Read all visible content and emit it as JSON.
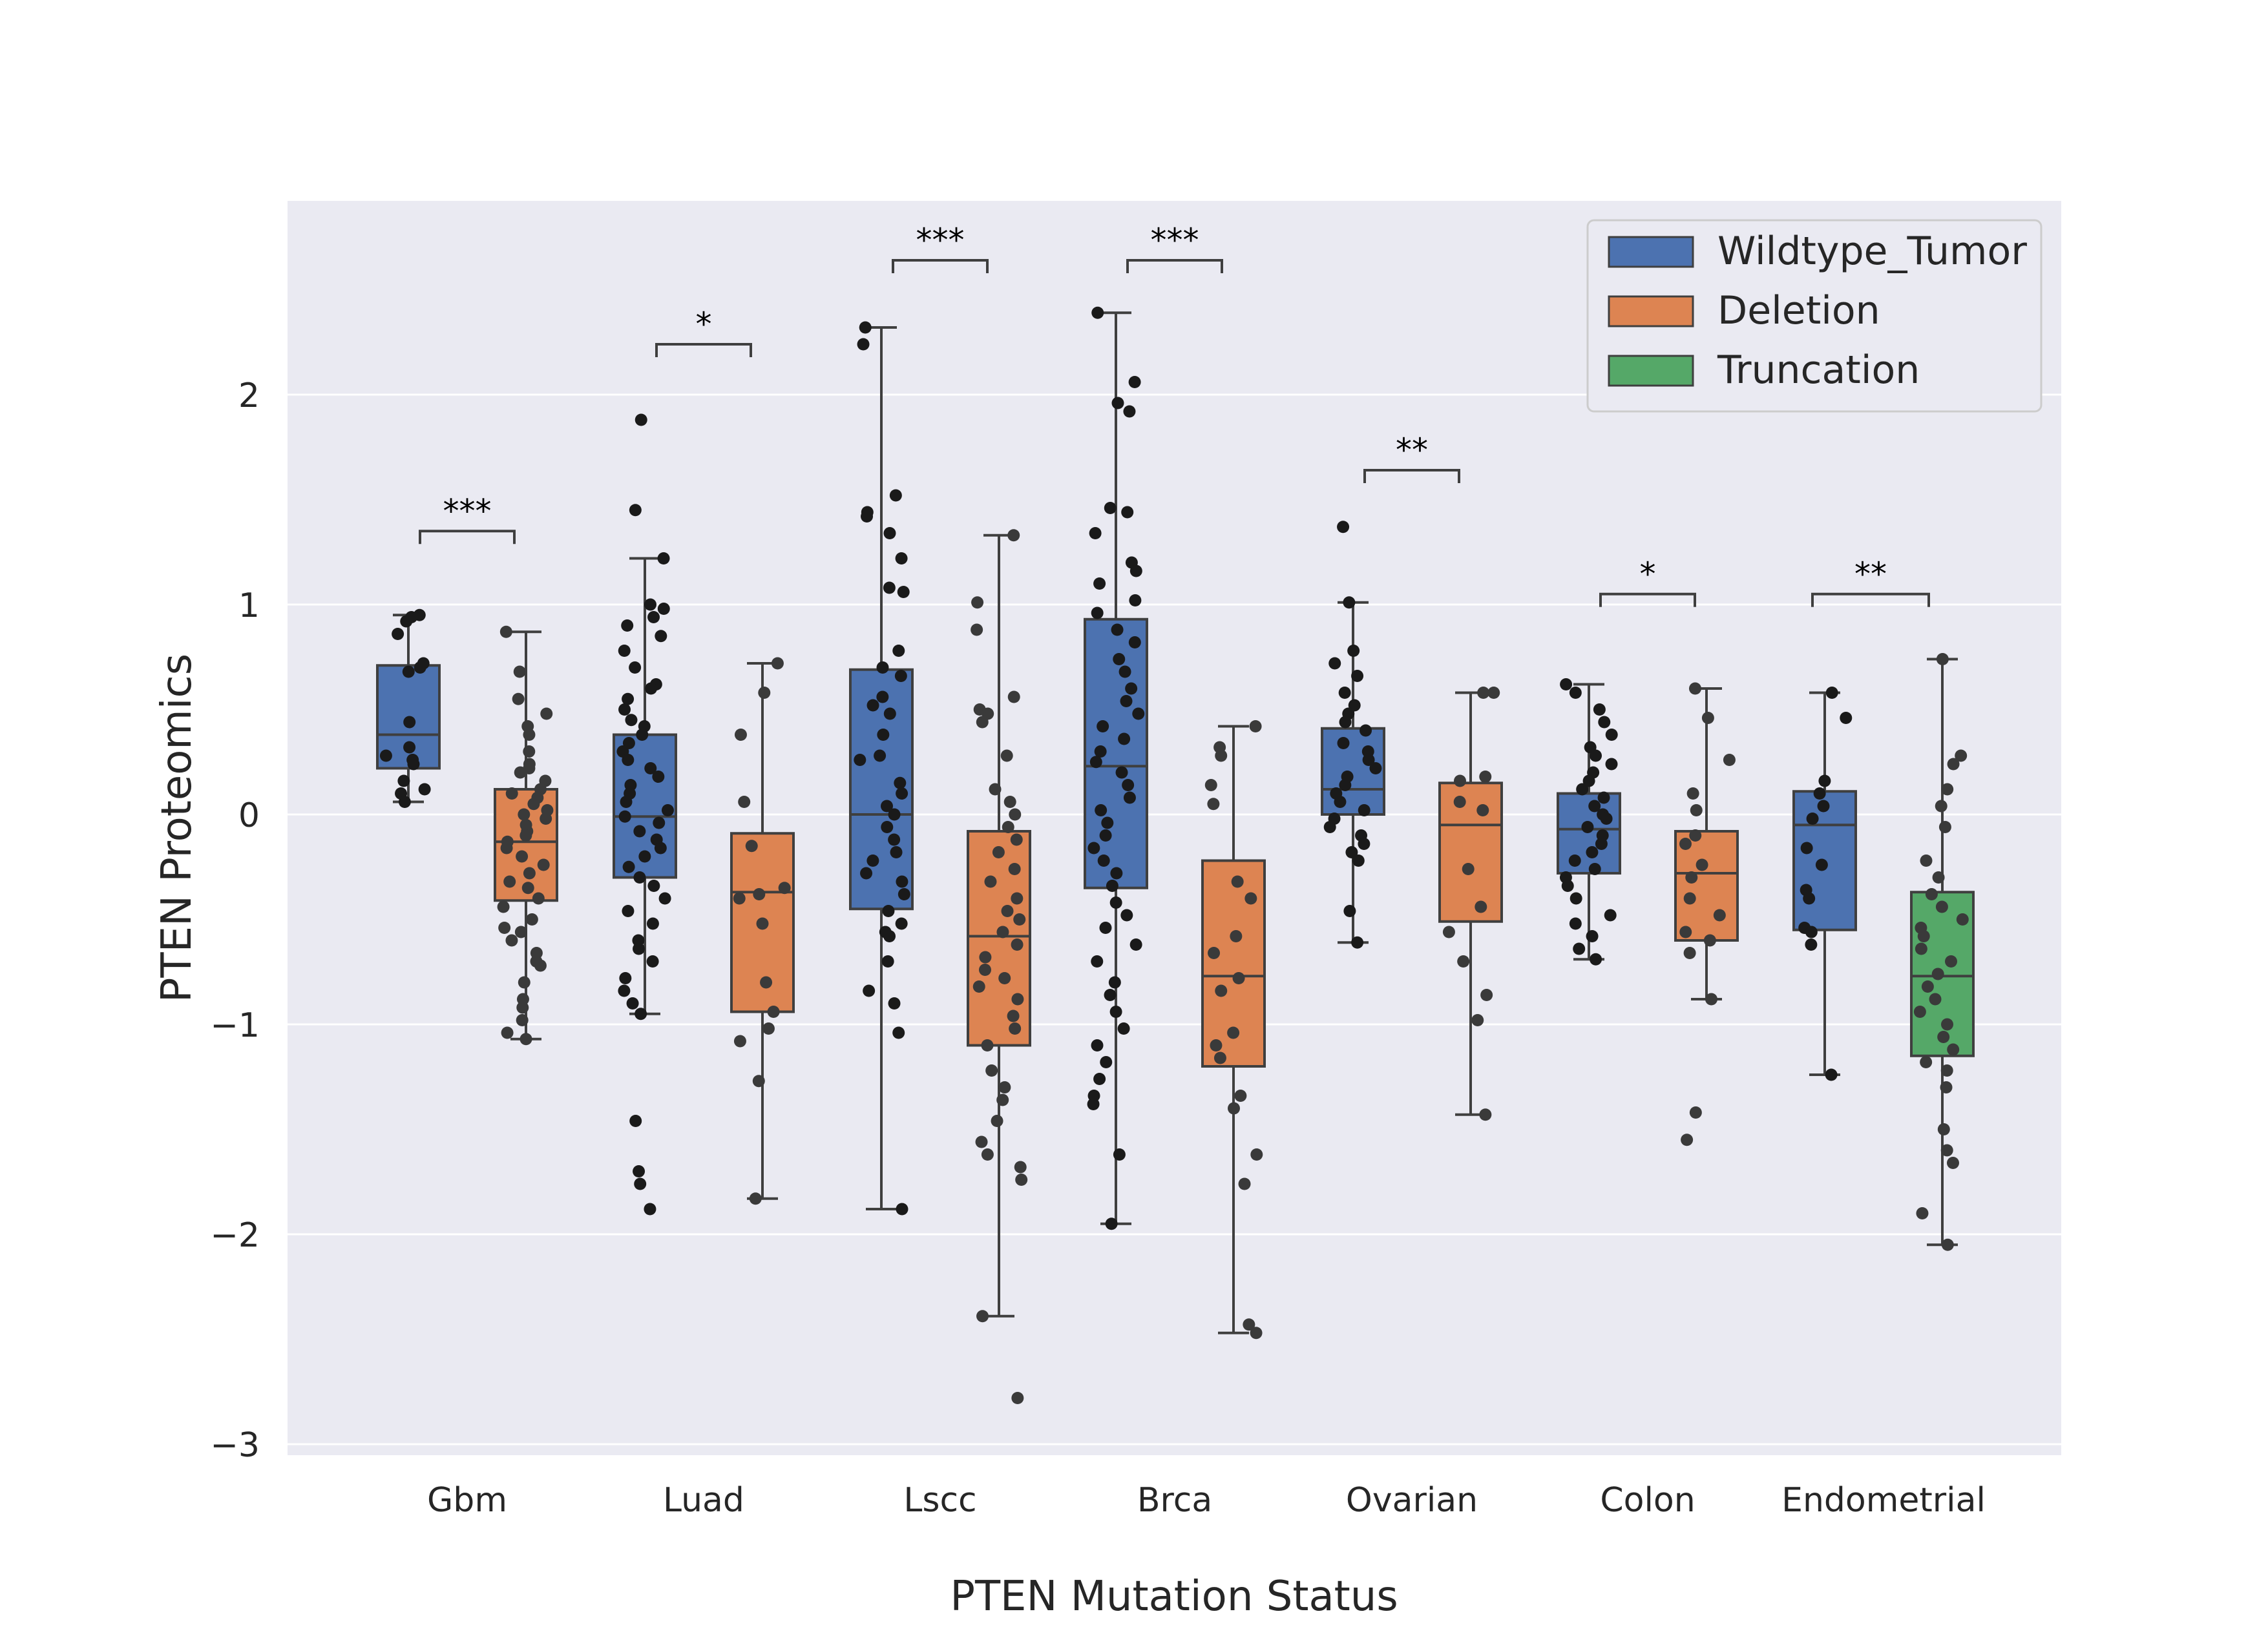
{
  "chart_data": {
    "type": "box",
    "xlabel": "PTEN Mutation Status",
    "ylabel": "PTEN Proteomics",
    "ylim": [
      -3.05,
      2.9
    ],
    "yticks": [
      -3,
      -2,
      -1,
      0,
      1,
      2
    ],
    "ytick_labels": [
      "−3",
      "−2",
      "−1",
      "0",
      "1",
      "2"
    ],
    "grid": true,
    "legend_position": "top-right",
    "categories": [
      "Gbm",
      "Luad",
      "Lscc",
      "Brca",
      "Ovarian",
      "Colon",
      "Endometrial"
    ],
    "series": [
      {
        "name": "Wildtype_Tumor",
        "color": "#4c72b0"
      },
      {
        "name": "Deletion",
        "color": "#dd8452"
      },
      {
        "name": "Truncation",
        "color": "#55a868"
      }
    ],
    "boxes": [
      {
        "category": "Gbm",
        "series": "Wildtype_Tumor",
        "slot": "left",
        "min": 0.06,
        "q1": 0.22,
        "median": 0.38,
        "q3": 0.71,
        "max": 0.95,
        "points": [
          0.95,
          0.94,
          0.92,
          0.86,
          0.72,
          0.7,
          0.68,
          0.44,
          0.32,
          0.28,
          0.26,
          0.24,
          0.16,
          0.12,
          0.1,
          0.06
        ]
      },
      {
        "category": "Gbm",
        "series": "Deletion",
        "slot": "right",
        "min": -1.07,
        "q1": -0.41,
        "median": -0.13,
        "q3": 0.12,
        "max": 0.87,
        "points": [
          0.87,
          0.68,
          0.55,
          0.48,
          0.42,
          0.38,
          0.3,
          0.24,
          0.22,
          0.2,
          0.16,
          0.12,
          0.1,
          0.08,
          0.05,
          0.02,
          0.0,
          -0.02,
          -0.05,
          -0.08,
          -0.1,
          -0.13,
          -0.16,
          -0.2,
          -0.24,
          -0.28,
          -0.32,
          -0.35,
          -0.4,
          -0.44,
          -0.5,
          -0.54,
          -0.56,
          -0.6,
          -0.66,
          -0.7,
          -0.72,
          -0.8,
          -0.88,
          -0.92,
          -0.98,
          -1.04,
          -1.07
        ]
      },
      {
        "category": "Luad",
        "series": "Wildtype_Tumor",
        "slot": "left",
        "min": -0.95,
        "q1": -0.3,
        "median": -0.01,
        "q3": 0.38,
        "max": 1.22,
        "points": [
          1.88,
          1.45,
          1.22,
          1.0,
          0.98,
          0.94,
          0.9,
          0.85,
          0.78,
          0.7,
          0.62,
          0.6,
          0.55,
          0.5,
          0.45,
          0.42,
          0.38,
          0.34,
          0.3,
          0.26,
          0.22,
          0.18,
          0.14,
          0.1,
          0.06,
          0.02,
          -0.01,
          -0.04,
          -0.08,
          -0.12,
          -0.16,
          -0.2,
          -0.25,
          -0.3,
          -0.34,
          -0.4,
          -0.46,
          -0.52,
          -0.6,
          -0.64,
          -0.7,
          -0.78,
          -0.84,
          -0.9,
          -0.95,
          -1.46,
          -1.7,
          -1.76,
          -1.88
        ]
      },
      {
        "category": "Luad",
        "series": "Deletion",
        "slot": "right",
        "min": -1.83,
        "q1": -0.94,
        "median": -0.37,
        "q3": -0.09,
        "max": 0.72,
        "points": [
          0.72,
          0.58,
          0.38,
          0.06,
          -0.15,
          -0.35,
          -0.38,
          -0.4,
          -0.52,
          -0.8,
          -0.94,
          -1.02,
          -1.08,
          -1.27,
          -1.83
        ]
      },
      {
        "category": "Lscc",
        "series": "Wildtype_Tumor",
        "slot": "left",
        "min": -1.88,
        "q1": -0.45,
        "median": 0.0,
        "q3": 0.69,
        "max": 2.32,
        "points": [
          2.32,
          2.24,
          1.52,
          1.44,
          1.42,
          1.34,
          1.22,
          1.08,
          1.06,
          0.78,
          0.7,
          0.66,
          0.56,
          0.52,
          0.48,
          0.38,
          0.28,
          0.26,
          0.15,
          0.1,
          0.04,
          0.0,
          -0.06,
          -0.12,
          -0.18,
          -0.22,
          -0.28,
          -0.32,
          -0.38,
          -0.46,
          -0.52,
          -0.56,
          -0.58,
          -0.7,
          -0.84,
          -0.9,
          -1.04,
          -1.88
        ]
      },
      {
        "category": "Lscc",
        "series": "Deletion",
        "slot": "right",
        "min": -2.39,
        "q1": -1.1,
        "median": -0.58,
        "q3": -0.08,
        "max": 1.33,
        "points": [
          1.33,
          1.01,
          0.88,
          0.56,
          0.5,
          0.48,
          0.44,
          0.28,
          0.12,
          0.06,
          0.0,
          -0.06,
          -0.12,
          -0.18,
          -0.26,
          -0.32,
          -0.4,
          -0.46,
          -0.5,
          -0.56,
          -0.62,
          -0.68,
          -0.74,
          -0.78,
          -0.82,
          -0.88,
          -0.96,
          -1.02,
          -1.1,
          -1.22,
          -1.3,
          -1.36,
          -1.46,
          -1.56,
          -1.62,
          -1.68,
          -1.74,
          -2.39,
          -2.78
        ]
      },
      {
        "category": "Brca",
        "series": "Wildtype_Tumor",
        "slot": "left",
        "min": -1.95,
        "q1": -0.35,
        "median": 0.23,
        "q3": 0.93,
        "max": 2.39,
        "points": [
          2.39,
          2.06,
          1.96,
          1.92,
          1.46,
          1.44,
          1.34,
          1.2,
          1.16,
          1.1,
          1.02,
          0.96,
          0.88,
          0.82,
          0.74,
          0.68,
          0.6,
          0.54,
          0.48,
          0.42,
          0.36,
          0.3,
          0.25,
          0.2,
          0.14,
          0.08,
          0.02,
          -0.04,
          -0.1,
          -0.16,
          -0.22,
          -0.28,
          -0.34,
          -0.42,
          -0.48,
          -0.54,
          -0.62,
          -0.7,
          -0.8,
          -0.86,
          -0.94,
          -1.02,
          -1.1,
          -1.18,
          -1.26,
          -1.34,
          -1.38,
          -1.62,
          -1.95
        ]
      },
      {
        "category": "Brca",
        "series": "Deletion",
        "slot": "right",
        "min": -2.47,
        "q1": -1.2,
        "median": -0.77,
        "q3": -0.22,
        "max": 0.42,
        "points": [
          0.42,
          0.32,
          0.28,
          0.14,
          0.05,
          -0.32,
          -0.4,
          -0.58,
          -0.66,
          -0.78,
          -0.84,
          -1.04,
          -1.1,
          -1.16,
          -1.34,
          -1.4,
          -1.62,
          -1.76,
          -2.43,
          -2.47
        ]
      },
      {
        "category": "Ovarian",
        "series": "Wildtype_Tumor",
        "slot": "left",
        "min": -0.61,
        "q1": 0.0,
        "median": 0.12,
        "q3": 0.41,
        "max": 1.01,
        "points": [
          1.37,
          1.01,
          0.78,
          0.72,
          0.66,
          0.58,
          0.52,
          0.48,
          0.44,
          0.4,
          0.34,
          0.3,
          0.26,
          0.22,
          0.18,
          0.14,
          0.1,
          0.06,
          0.02,
          -0.02,
          -0.06,
          -0.1,
          -0.14,
          -0.18,
          -0.22,
          -0.46,
          -0.61
        ]
      },
      {
        "category": "Ovarian",
        "series": "Deletion",
        "slot": "right",
        "min": -1.43,
        "q1": -0.51,
        "median": -0.05,
        "q3": 0.15,
        "max": 0.58,
        "points": [
          0.58,
          0.58,
          0.18,
          0.16,
          0.06,
          0.02,
          -0.26,
          -0.44,
          -0.56,
          -0.7,
          -0.86,
          -0.98,
          -1.43
        ]
      },
      {
        "category": "Colon",
        "series": "Wildtype_Tumor",
        "slot": "left",
        "min": -0.69,
        "q1": -0.28,
        "median": -0.07,
        "q3": 0.1,
        "max": 0.62,
        "points": [
          0.62,
          0.58,
          0.5,
          0.44,
          0.38,
          0.32,
          0.28,
          0.24,
          0.2,
          0.16,
          0.12,
          0.08,
          0.04,
          0.0,
          -0.02,
          -0.06,
          -0.1,
          -0.14,
          -0.18,
          -0.22,
          -0.26,
          -0.3,
          -0.34,
          -0.4,
          -0.48,
          -0.52,
          -0.58,
          -0.64,
          -0.69
        ]
      },
      {
        "category": "Colon",
        "series": "Deletion",
        "slot": "right",
        "min": -0.88,
        "q1": -0.6,
        "median": -0.28,
        "q3": -0.08,
        "max": 0.6,
        "points": [
          0.6,
          0.46,
          0.26,
          0.1,
          0.02,
          -0.1,
          -0.14,
          -0.24,
          -0.3,
          -0.4,
          -0.48,
          -0.56,
          -0.6,
          -0.66,
          -0.88,
          -1.42,
          -1.55
        ]
      },
      {
        "category": "Endometrial",
        "series": "Wildtype_Tumor",
        "slot": "left",
        "min": -1.24,
        "q1": -0.55,
        "median": -0.05,
        "q3": 0.11,
        "max": 0.58,
        "points": [
          0.58,
          0.46,
          0.16,
          0.1,
          0.04,
          -0.02,
          -0.16,
          -0.24,
          -0.36,
          -0.4,
          -0.54,
          -0.56,
          -0.62,
          -1.24
        ]
      },
      {
        "category": "Endometrial",
        "series": "Truncation",
        "slot": "right",
        "min": -2.05,
        "q1": -1.15,
        "median": -0.77,
        "q3": -0.37,
        "max": 0.74,
        "points": [
          0.74,
          0.28,
          0.24,
          0.12,
          0.04,
          -0.06,
          -0.22,
          -0.3,
          -0.38,
          -0.44,
          -0.5,
          -0.54,
          -0.58,
          -0.64,
          -0.7,
          -0.76,
          -0.82,
          -0.88,
          -0.94,
          -1.0,
          -1.06,
          -1.12,
          -1.18,
          -1.22,
          -1.3,
          -1.5,
          -1.6,
          -1.66,
          -1.9,
          -2.05
        ]
      }
    ],
    "significance": [
      {
        "category": "Gbm",
        "label": "***",
        "y": 1.35
      },
      {
        "category": "Luad",
        "label": "*",
        "y": 2.24
      },
      {
        "category": "Lscc",
        "label": "***",
        "y": 2.64
      },
      {
        "category": "Brca",
        "label": "***",
        "y": 2.64
      },
      {
        "category": "Ovarian",
        "label": "**",
        "y": 1.64
      },
      {
        "category": "Colon",
        "label": "*",
        "y": 1.05
      },
      {
        "category": "Endometrial",
        "label": "**",
        "y": 1.05,
        "wide": true
      }
    ]
  }
}
